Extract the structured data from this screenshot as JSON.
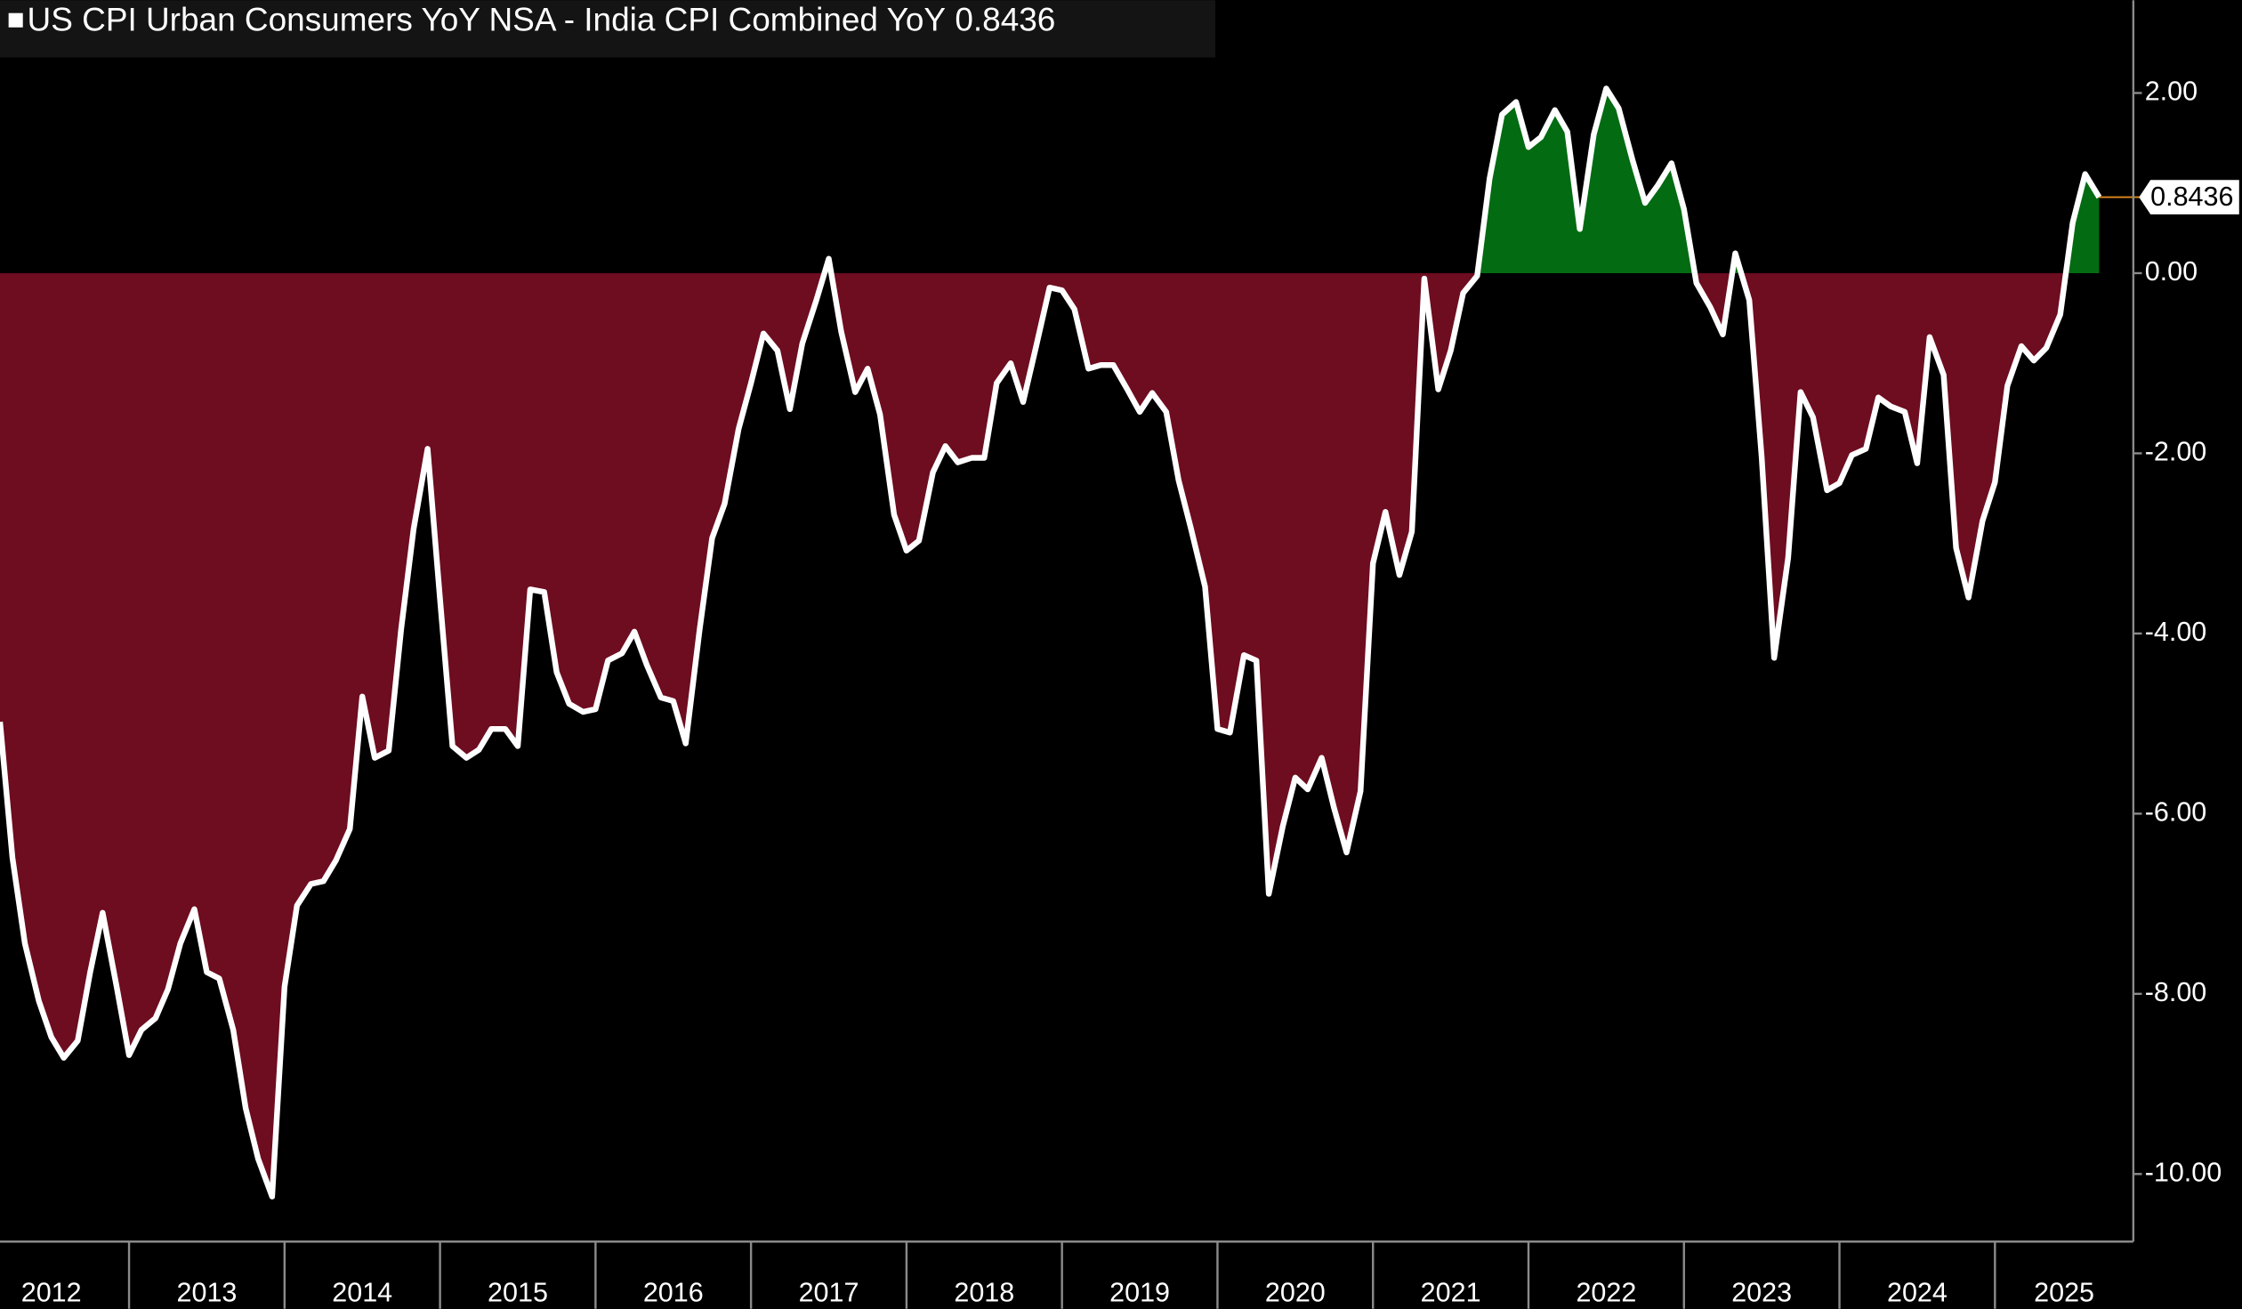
{
  "chart_data": {
    "type": "area-line",
    "series": [
      {
        "name": "US CPI Urban Consumers YoY NSA - India CPI Combined YoY",
        "color": "#ffffff",
        "positive_color": "#036b12",
        "negative_color": "#6e0c20",
        "x": [
          2012.17,
          2012.25,
          2012.33,
          2012.42,
          2012.5,
          2012.58,
          2012.67,
          2012.75,
          2012.83,
          2012.92,
          2013.0,
          2013.08,
          2013.17,
          2013.25,
          2013.33,
          2013.42,
          2013.5,
          2013.58,
          2013.67,
          2013.75,
          2013.83,
          2013.92,
          2014.0,
          2014.08,
          2014.17,
          2014.25,
          2014.33,
          2014.42,
          2014.5,
          2014.58,
          2014.67,
          2014.75,
          2014.83,
          2014.92,
          2015.0,
          2015.08,
          2015.17,
          2015.25,
          2015.33,
          2015.42,
          2015.5,
          2015.58,
          2015.67,
          2015.75,
          2015.83,
          2015.92,
          2016.0,
          2016.08,
          2016.17,
          2016.25,
          2016.33,
          2016.42,
          2016.5,
          2016.58,
          2016.67,
          2016.75,
          2016.83,
          2016.92,
          2017.0,
          2017.08,
          2017.17,
          2017.25,
          2017.33,
          2017.42,
          2017.5,
          2017.58,
          2017.67,
          2017.75,
          2017.83,
          2017.92,
          2018.0,
          2018.08,
          2018.17,
          2018.25,
          2018.33,
          2018.42,
          2018.5,
          2018.58,
          2018.67,
          2018.75,
          2018.83,
          2018.92,
          2019.0,
          2019.08,
          2019.17,
          2019.25,
          2019.33,
          2019.42,
          2019.5,
          2019.58,
          2019.67,
          2019.75,
          2019.83,
          2019.92,
          2020.0,
          2020.08,
          2020.17,
          2020.25,
          2020.33,
          2020.42,
          2020.5,
          2020.58,
          2020.67,
          2020.75,
          2020.83,
          2020.92,
          2021.0,
          2021.08,
          2021.17,
          2021.25,
          2021.33,
          2021.42,
          2021.5,
          2021.58,
          2021.67,
          2021.75,
          2021.83,
          2021.92,
          2022.0,
          2022.08,
          2022.17,
          2022.25,
          2022.33,
          2022.42,
          2022.5,
          2022.58,
          2022.67,
          2022.75,
          2022.83,
          2022.92,
          2023.0,
          2023.08,
          2023.17,
          2023.25,
          2023.33,
          2023.42,
          2023.5,
          2023.58,
          2023.67,
          2023.75,
          2023.83,
          2023.92,
          2024.0,
          2024.08,
          2024.17,
          2024.25,
          2024.33,
          2024.42,
          2024.5,
          2024.58,
          2024.67,
          2024.75,
          2024.83,
          2024.92,
          2025.0,
          2025.08,
          2025.17,
          2025.25,
          2025.33,
          2025.42,
          2025.5,
          2025.58,
          2025.67
        ],
        "values": [
          -4.98,
          -6.49,
          -7.44,
          -8.08,
          -8.48,
          -8.71,
          -8.52,
          -7.76,
          -7.1,
          -7.92,
          -8.68,
          -8.4,
          -8.27,
          -7.95,
          -7.44,
          -7.06,
          -7.76,
          -7.83,
          -8.4,
          -9.27,
          -9.83,
          -10.25,
          -7.92,
          -7.02,
          -6.78,
          -6.75,
          -6.52,
          -6.17,
          -4.7,
          -5.38,
          -5.3,
          -3.95,
          -2.84,
          -1.95,
          -3.62,
          -5.25,
          -5.38,
          -5.29,
          -5.06,
          -5.06,
          -5.25,
          -3.51,
          -3.54,
          -4.43,
          -4.78,
          -4.87,
          -4.84,
          -4.3,
          -4.22,
          -3.98,
          -4.35,
          -4.71,
          -4.75,
          -5.22,
          -3.95,
          -2.94,
          -2.56,
          -1.73,
          -1.22,
          -0.67,
          -0.86,
          -1.51,
          -0.78,
          -0.3,
          0.16,
          -0.65,
          -1.32,
          -1.06,
          -1.57,
          -2.68,
          -3.08,
          -2.97,
          -2.21,
          -1.92,
          -2.1,
          -2.05,
          -2.05,
          -1.22,
          -1.0,
          -1.43,
          -0.84,
          -0.16,
          -0.19,
          -0.4,
          -1.06,
          -1.02,
          -1.02,
          -1.29,
          -1.54,
          -1.33,
          -1.54,
          -2.3,
          -2.84,
          -3.48,
          -5.06,
          -5.1,
          -4.24,
          -4.3,
          -6.89,
          -6.14,
          -5.6,
          -5.73,
          -5.38,
          -5.94,
          -6.43,
          -5.75,
          -3.22,
          -2.65,
          -3.35,
          -2.87,
          -0.06,
          -1.29,
          -0.86,
          -0.22,
          -0.03,
          1.05,
          1.76,
          1.9,
          1.4,
          1.51,
          1.81,
          1.57,
          0.49,
          1.54,
          2.05,
          1.83,
          1.25,
          0.78,
          0.97,
          1.22,
          0.71,
          -0.11,
          -0.38,
          -0.68,
          0.22,
          -0.3,
          -2.05,
          -4.27,
          -3.16,
          -1.32,
          -1.6,
          -2.41,
          -2.33,
          -2.02,
          -1.95,
          -1.38,
          -1.48,
          -1.54,
          -2.11,
          -0.71,
          -1.13,
          -3.05,
          -3.6,
          -2.75,
          -2.32,
          -1.25,
          -0.81,
          -0.97,
          -0.83,
          -0.46,
          0.56,
          1.1,
          0.8436
        ]
      }
    ],
    "xlim": [
      2012.17,
      2025.89
    ],
    "xticks": [
      2012,
      2013,
      2014,
      2015,
      2016,
      2017,
      2018,
      2019,
      2020,
      2021,
      2022,
      2023,
      2024,
      2025
    ],
    "ylim": [
      -10.75,
      3.03
    ],
    "yticks": [
      {
        "value": 2,
        "label": "2.00"
      },
      {
        "value": 0,
        "label": "0.00"
      },
      {
        "value": -2,
        "label": "-2.00"
      },
      {
        "value": -4,
        "label": "-4.00"
      },
      {
        "value": -6,
        "label": "-6.00"
      },
      {
        "value": -8,
        "label": "-8.00"
      },
      {
        "value": -10,
        "label": "-10.00"
      }
    ],
    "y_axis_side": "right",
    "last_value_tag": true
  }
}
